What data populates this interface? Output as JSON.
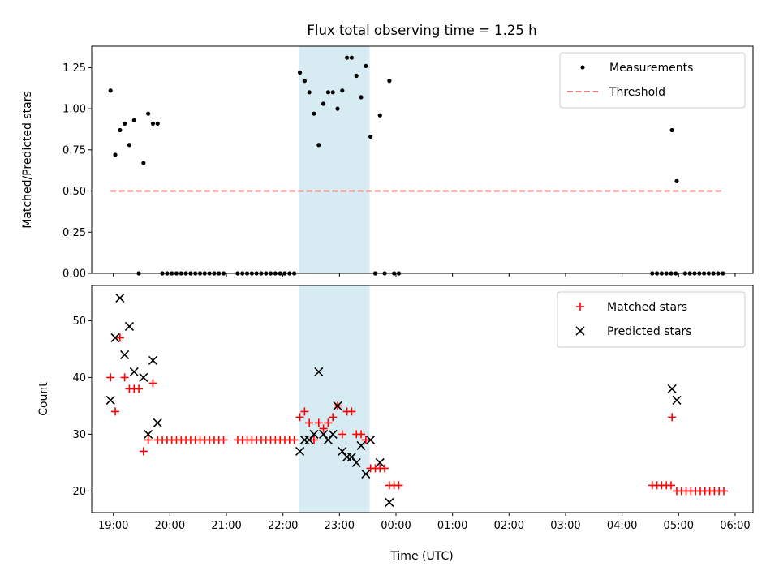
{
  "chart_data": {
    "type": "scatter",
    "title": "Flux total observing time = 1.25 h",
    "colors": {
      "measurements": "#000000",
      "threshold": "#f08080",
      "matched": "#ff0000",
      "predicted": "#000000",
      "span": "#add8e6"
    },
    "highlight_span": [
      "22:17",
      "23:32"
    ],
    "xlim": [
      "18:37",
      "06:19"
    ],
    "x_ticks": [
      "19:00",
      "20:00",
      "21:00",
      "22:00",
      "23:00",
      "00:00",
      "01:00",
      "02:00",
      "03:00",
      "04:00",
      "05:00",
      "06:00"
    ],
    "xlabel": "Time (UTC)",
    "panels": [
      {
        "ylabel": "Matched/Predicted stars",
        "ylim": [
          0,
          1.38
        ],
        "y_ticks": [
          "0.00",
          "0.25",
          "0.50",
          "0.75",
          "1.00",
          "1.25"
        ],
        "legend_position": "top-right",
        "series": [
          {
            "name": "Measurements",
            "marker": "dot",
            "points": [
              [
                "18:57",
                1.11
              ],
              [
                "19:02",
                0.72
              ],
              [
                "19:07",
                0.87
              ],
              [
                "19:12",
                0.91
              ],
              [
                "19:17",
                0.78
              ],
              [
                "19:22",
                0.93
              ],
              [
                "19:27",
                0.0
              ],
              [
                "19:32",
                0.67
              ],
              [
                "19:37",
                0.97
              ],
              [
                "19:42",
                0.91
              ],
              [
                "19:47",
                0.91
              ],
              [
                "19:52",
                0.0
              ],
              [
                "19:57",
                0.0
              ],
              [
                "20:02",
                0.0
              ],
              [
                "20:07",
                0.0
              ],
              [
                "20:12",
                0.0
              ],
              [
                "20:17",
                0.0
              ],
              [
                "20:22",
                0.0
              ],
              [
                "20:27",
                0.0
              ],
              [
                "20:32",
                0.0
              ],
              [
                "20:37",
                0.0
              ],
              [
                "20:42",
                0.0
              ],
              [
                "20:47",
                0.0
              ],
              [
                "20:52",
                0.0
              ],
              [
                "20:57",
                0.0
              ],
              [
                "21:12",
                0.0
              ],
              [
                "21:17",
                0.0
              ],
              [
                "21:22",
                0.0
              ],
              [
                "21:27",
                0.0
              ],
              [
                "21:32",
                0.0
              ],
              [
                "21:37",
                0.0
              ],
              [
                "21:42",
                0.0
              ],
              [
                "21:47",
                0.0
              ],
              [
                "21:52",
                0.0
              ],
              [
                "21:57",
                0.0
              ],
              [
                "22:02",
                0.0
              ],
              [
                "22:07",
                0.0
              ],
              [
                "22:12",
                0.0
              ],
              [
                "22:18",
                1.22
              ],
              [
                "22:23",
                1.17
              ],
              [
                "22:28",
                1.1
              ],
              [
                "22:33",
                0.97
              ],
              [
                "22:38",
                0.78
              ],
              [
                "22:43",
                1.03
              ],
              [
                "22:48",
                1.1
              ],
              [
                "22:53",
                1.1
              ],
              [
                "22:58",
                1.0
              ],
              [
                "23:03",
                1.11
              ],
              [
                "23:08",
                1.31
              ],
              [
                "23:13",
                1.31
              ],
              [
                "23:18",
                1.2
              ],
              [
                "23:23",
                1.07
              ],
              [
                "23:28",
                1.26
              ],
              [
                "23:33",
                0.83
              ],
              [
                "23:43",
                0.96
              ],
              [
                "23:53",
                1.17
              ],
              [
                "23:38",
                0.0
              ],
              [
                "23:48",
                0.0
              ],
              [
                "23:58",
                0.0
              ],
              [
                "00:03",
                0.0
              ],
              [
                "04:32",
                0.0
              ],
              [
                "04:37",
                0.0
              ],
              [
                "04:42",
                0.0
              ],
              [
                "04:47",
                0.0
              ],
              [
                "04:52",
                0.0
              ],
              [
                "04:57",
                0.0
              ],
              [
                "05:07",
                0.0
              ],
              [
                "05:12",
                0.0
              ],
              [
                "05:17",
                0.0
              ],
              [
                "05:22",
                0.0
              ],
              [
                "05:27",
                0.0
              ],
              [
                "05:32",
                0.0
              ],
              [
                "05:37",
                0.0
              ],
              [
                "05:42",
                0.0
              ],
              [
                "05:47",
                0.0
              ],
              [
                "04:53",
                0.87
              ],
              [
                "04:58",
                0.56
              ]
            ]
          },
          {
            "name": "Threshold",
            "marker": "dashed-line",
            "points": [
              [
                "18:57",
                0.5
              ],
              [
                "05:47",
                0.5
              ]
            ]
          }
        ]
      },
      {
        "ylabel": "Count",
        "ylim": [
          16.2,
          56.2
        ],
        "y_ticks": [
          "20",
          "30",
          "40",
          "50"
        ],
        "legend_position": "top-right",
        "series": [
          {
            "name": "Matched stars",
            "marker": "plus",
            "points": [
              [
                "18:57",
                40
              ],
              [
                "19:02",
                34
              ],
              [
                "19:07",
                47
              ],
              [
                "19:12",
                40
              ],
              [
                "19:17",
                38
              ],
              [
                "19:22",
                38
              ],
              [
                "19:27",
                38
              ],
              [
                "19:32",
                27
              ],
              [
                "19:37",
                29
              ],
              [
                "19:42",
                39
              ],
              [
                "19:47",
                29
              ],
              [
                "19:52",
                29
              ],
              [
                "19:57",
                29
              ],
              [
                "20:02",
                29
              ],
              [
                "20:07",
                29
              ],
              [
                "20:12",
                29
              ],
              [
                "20:17",
                29
              ],
              [
                "20:22",
                29
              ],
              [
                "20:27",
                29
              ],
              [
                "20:32",
                29
              ],
              [
                "20:37",
                29
              ],
              [
                "20:42",
                29
              ],
              [
                "20:47",
                29
              ],
              [
                "20:52",
                29
              ],
              [
                "20:57",
                29
              ],
              [
                "21:12",
                29
              ],
              [
                "21:17",
                29
              ],
              [
                "21:22",
                29
              ],
              [
                "21:27",
                29
              ],
              [
                "21:32",
                29
              ],
              [
                "21:37",
                29
              ],
              [
                "21:42",
                29
              ],
              [
                "21:47",
                29
              ],
              [
                "21:52",
                29
              ],
              [
                "21:57",
                29
              ],
              [
                "22:02",
                29
              ],
              [
                "22:07",
                29
              ],
              [
                "22:12",
                29
              ],
              [
                "22:18",
                33
              ],
              [
                "22:23",
                34
              ],
              [
                "22:28",
                32
              ],
              [
                "22:33",
                29
              ],
              [
                "22:38",
                32
              ],
              [
                "22:43",
                31
              ],
              [
                "22:48",
                32
              ],
              [
                "22:53",
                33
              ],
              [
                "22:58",
                35
              ],
              [
                "23:03",
                30
              ],
              [
                "23:08",
                34
              ],
              [
                "23:13",
                34
              ],
              [
                "23:18",
                30
              ],
              [
                "23:23",
                30
              ],
              [
                "23:28",
                29
              ],
              [
                "23:33",
                24
              ],
              [
                "23:38",
                24
              ],
              [
                "23:43",
                24
              ],
              [
                "23:48",
                24
              ],
              [
                "23:53",
                21
              ],
              [
                "23:58",
                21
              ],
              [
                "00:03",
                21
              ],
              [
                "04:32",
                21
              ],
              [
                "04:37",
                21
              ],
              [
                "04:42",
                21
              ],
              [
                "04:47",
                21
              ],
              [
                "04:52",
                21
              ],
              [
                "04:53",
                33
              ],
              [
                "04:58",
                20
              ],
              [
                "05:03",
                20
              ],
              [
                "05:08",
                20
              ],
              [
                "05:13",
                20
              ],
              [
                "05:18",
                20
              ],
              [
                "05:23",
                20
              ],
              [
                "05:28",
                20
              ],
              [
                "05:33",
                20
              ],
              [
                "05:38",
                20
              ],
              [
                "05:43",
                20
              ],
              [
                "05:48",
                20
              ]
            ]
          },
          {
            "name": "Predicted stars",
            "marker": "x",
            "points": [
              [
                "18:57",
                36
              ],
              [
                "19:02",
                47
              ],
              [
                "19:07",
                54
              ],
              [
                "19:12",
                44
              ],
              [
                "19:17",
                49
              ],
              [
                "19:22",
                41
              ],
              [
                "19:32",
                40
              ],
              [
                "19:37",
                30
              ],
              [
                "19:42",
                43
              ],
              [
                "19:47",
                32
              ],
              [
                "22:18",
                27
              ],
              [
                "22:23",
                29
              ],
              [
                "22:28",
                29
              ],
              [
                "22:33",
                30
              ],
              [
                "22:38",
                41
              ],
              [
                "22:43",
                30
              ],
              [
                "22:48",
                29
              ],
              [
                "22:53",
                30
              ],
              [
                "22:58",
                35
              ],
              [
                "23:03",
                27
              ],
              [
                "23:08",
                26
              ],
              [
                "23:13",
                26
              ],
              [
                "23:18",
                25
              ],
              [
                "23:23",
                28
              ],
              [
                "23:28",
                23
              ],
              [
                "23:33",
                29
              ],
              [
                "23:43",
                25
              ],
              [
                "23:53",
                18
              ],
              [
                "04:53",
                38
              ],
              [
                "04:58",
                36
              ]
            ]
          }
        ]
      }
    ]
  }
}
